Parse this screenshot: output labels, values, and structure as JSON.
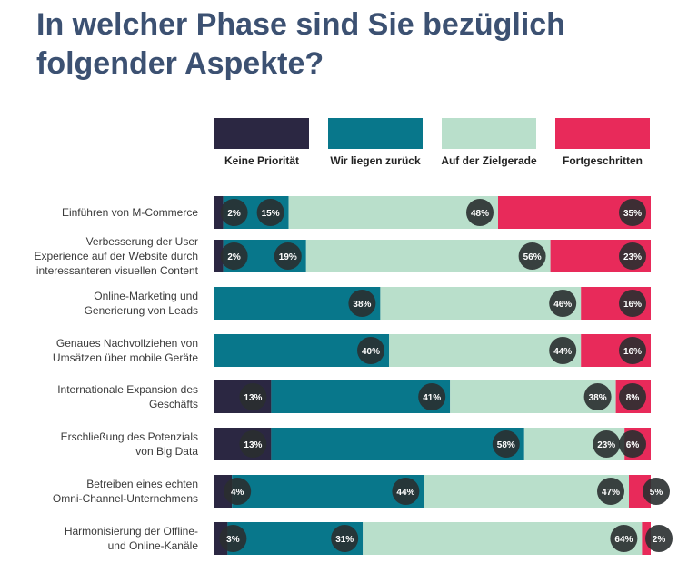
{
  "chart_data": {
    "type": "stacked-bar-horizontal",
    "title": "In welcher Phase sind Sie bezüglich folgender Aspekte?",
    "legend": [
      {
        "name": "Keine Priorität",
        "color": "#2b2742"
      },
      {
        "name": "Wir liegen zurück",
        "color": "#08778b"
      },
      {
        "name": "Auf der Zielgerade",
        "color": "#b9dfcb"
      },
      {
        "name": "Fortgeschritten",
        "color": "#e82a5a"
      }
    ],
    "categories": [
      [
        "Einführen von M-Commerce"
      ],
      [
        "Verbesserung der User",
        "Experience auf der Website durch",
        "interessanteren visuellen Content"
      ],
      [
        "Online-Marketing und",
        "Generierung von Leads"
      ],
      [
        "Genaues Nachvollziehen von",
        "Umsätzen über mobile Geräte"
      ],
      [
        "Internationale Expansion des",
        "Geschäfts"
      ],
      [
        "Erschließung des Potenzials",
        "von Big Data"
      ],
      [
        "Betreiben eines echten",
        "Omni-Channel-Unternehmens"
      ],
      [
        "Harmonisierung der Offline-",
        "und Online-Kanäle"
      ]
    ],
    "series": [
      {
        "name": "Keine Priorität",
        "values": [
          2,
          2,
          0,
          0,
          13,
          13,
          4,
          3
        ]
      },
      {
        "name": "Wir liegen zurück",
        "values": [
          15,
          19,
          38,
          40,
          41,
          58,
          44,
          31
        ]
      },
      {
        "name": "Auf der Zielgerade",
        "values": [
          48,
          56,
          46,
          44,
          38,
          23,
          47,
          64
        ]
      },
      {
        "name": "Fortgeschritten",
        "values": [
          35,
          23,
          16,
          16,
          8,
          6,
          5,
          2
        ]
      }
    ],
    "value_suffix": "%",
    "xlim": [
      0,
      100
    ]
  }
}
